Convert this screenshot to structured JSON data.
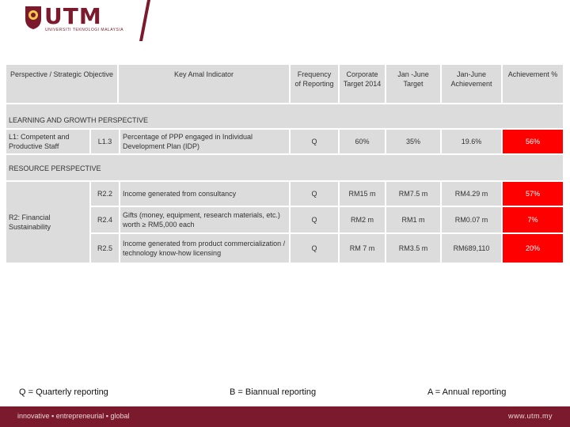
{
  "brand": {
    "logo_text": "UTM",
    "logo_sub": "UNIVERSITI TEKNOLOGI MALAYSIA",
    "accent_color": "#7a1a2c"
  },
  "table": {
    "headers": {
      "perspective": "Perspective / Strategic Objective",
      "kpi": "Key Amal Indicator",
      "frequency": "Frequency of Reporting",
      "corporate_target": "Corporate Target 2014",
      "jan_june_target": "Jan -June Target",
      "jan_june_achievement": "Jan-June Achievement",
      "achievement_pct": "Achievement %"
    },
    "sections": [
      {
        "title": "LEARNING AND GROWTH PERSPECTIVE",
        "objective": "L1: Competent and Productive Staff",
        "rows": [
          {
            "code": "L1.3",
            "indicator": "Percentage of PPP engaged in Individual Development Plan (IDP)",
            "frequency": "Q",
            "corporate_target": "60%",
            "jan_june_target": "35%",
            "jan_june_achievement": "19.6%",
            "achievement_pct": "56%"
          }
        ]
      },
      {
        "title": "RESOURCE PERSPECTIVE",
        "objective": "R2: Financial Sustainability",
        "rows": [
          {
            "code": "R2.2",
            "indicator": "Income generated from consultancy",
            "frequency": "Q",
            "corporate_target": "RM15 m",
            "jan_june_target": "RM7.5 m",
            "jan_june_achievement": "RM4.29 m",
            "achievement_pct": "57%"
          },
          {
            "code": "R2.4",
            "indicator": "Gifts (money, equipment, research materials, etc.) worth ≥ RM5,000 each",
            "frequency": "Q",
            "corporate_target": "RM2 m",
            "jan_june_target": "RM1 m",
            "jan_june_achievement": "RM0.07 m",
            "achievement_pct": "7%"
          },
          {
            "code": "R2.5",
            "indicator": "Income generated from product commercialization / technology know-how licensing",
            "frequency": "Q",
            "corporate_target": "RM 7 m",
            "jan_june_target": "RM3.5 m",
            "jan_june_achievement": "RM689,110",
            "achievement_pct": "20%"
          }
        ]
      }
    ]
  },
  "legend": {
    "quarterly": "Q = Quarterly reporting",
    "biannual": "B = Biannual reporting",
    "annual": "A = Annual reporting"
  },
  "footer": {
    "tagline": "innovative ▪ entrepreneurial ▪ global",
    "url": "www.utm.my"
  }
}
